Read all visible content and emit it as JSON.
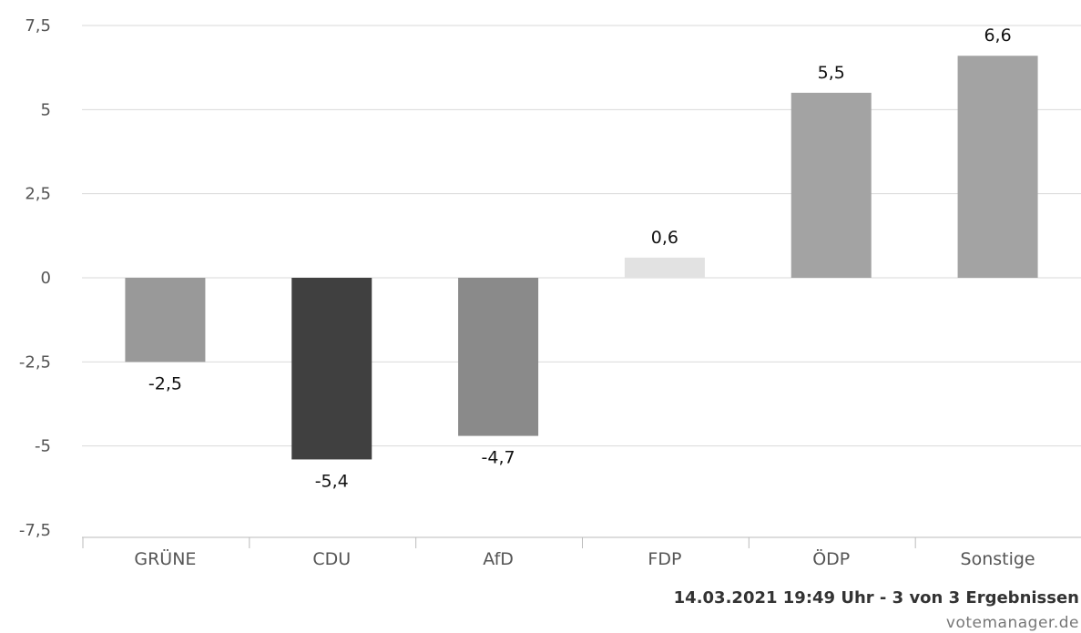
{
  "chart_data": {
    "type": "bar",
    "categories": [
      "GRÜNE",
      "CDU",
      "AfD",
      "FDP",
      "ÖDP",
      "Sonstige"
    ],
    "values": [
      -2.5,
      -5.4,
      -4.7,
      0.6,
      5.5,
      6.6
    ],
    "value_labels": [
      "-2,5",
      "-5,4",
      "-4,7",
      "0,6",
      "5,5",
      "6,6"
    ],
    "bar_colors": [
      "#999999",
      "#404040",
      "#8a8a8a",
      "#e2e2e2",
      "#a3a3a3",
      "#a3a3a3"
    ],
    "yticks": [
      7.5,
      5,
      2.5,
      0,
      -2.5,
      -5,
      -7.5
    ],
    "ytick_labels": [
      "7,5",
      "5",
      "2,5",
      "0",
      "-2,5",
      "-5",
      "-7,5"
    ],
    "ylim": [
      -7.5,
      7.5
    ],
    "grid": true,
    "title": "",
    "xlabel": "",
    "ylabel": ""
  },
  "footer": {
    "timestamp": "14.03.2021 19:49 Uhr - 3 von 3 Ergebnissen",
    "source": "votemanager.de"
  }
}
